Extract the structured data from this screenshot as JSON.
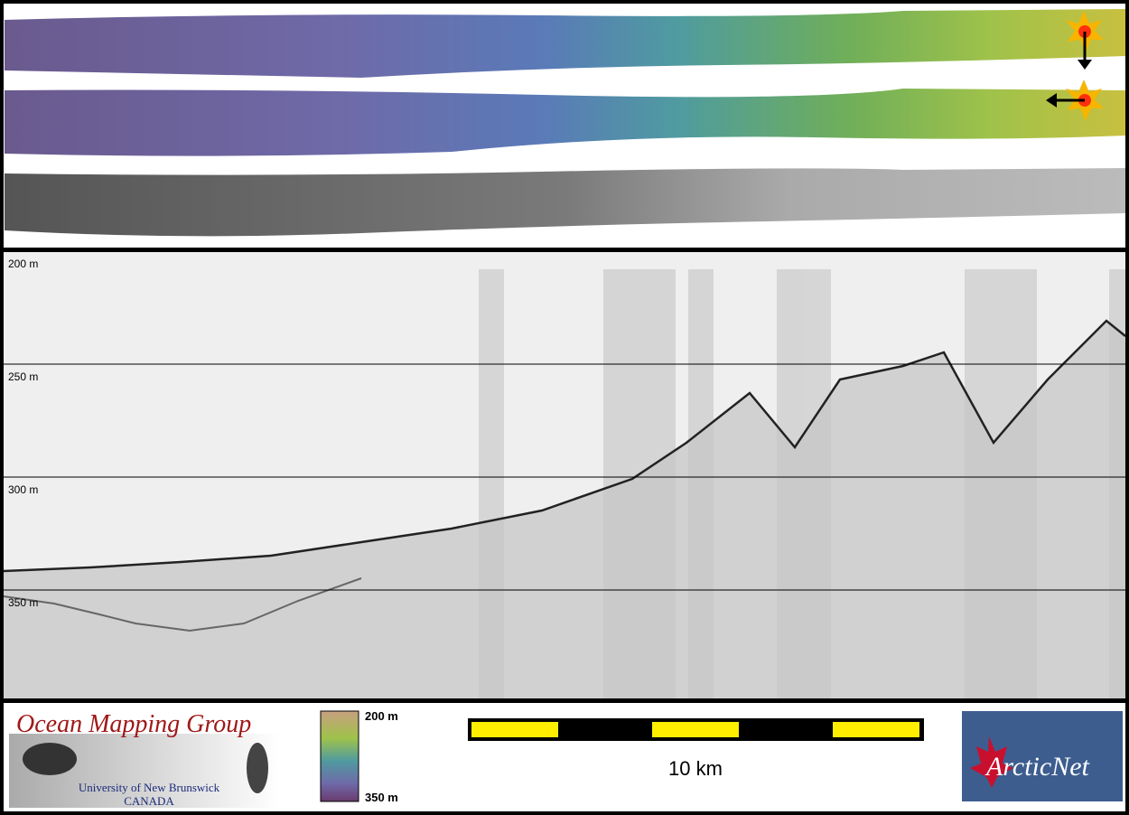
{
  "profile": {
    "depth_labels": [
      "200 m",
      "250 m",
      "300 m",
      "350 m"
    ]
  },
  "footer": {
    "logo": {
      "title": "Ocean Mapping Group",
      "university": "University of New Brunswick",
      "country": "CANADA"
    },
    "colorbar": {
      "top_label": "200 m",
      "bottom_label": "350 m"
    },
    "scale_bar": {
      "label": "10 km"
    },
    "partner_logo": {
      "label": "ArcticNet"
    }
  }
}
